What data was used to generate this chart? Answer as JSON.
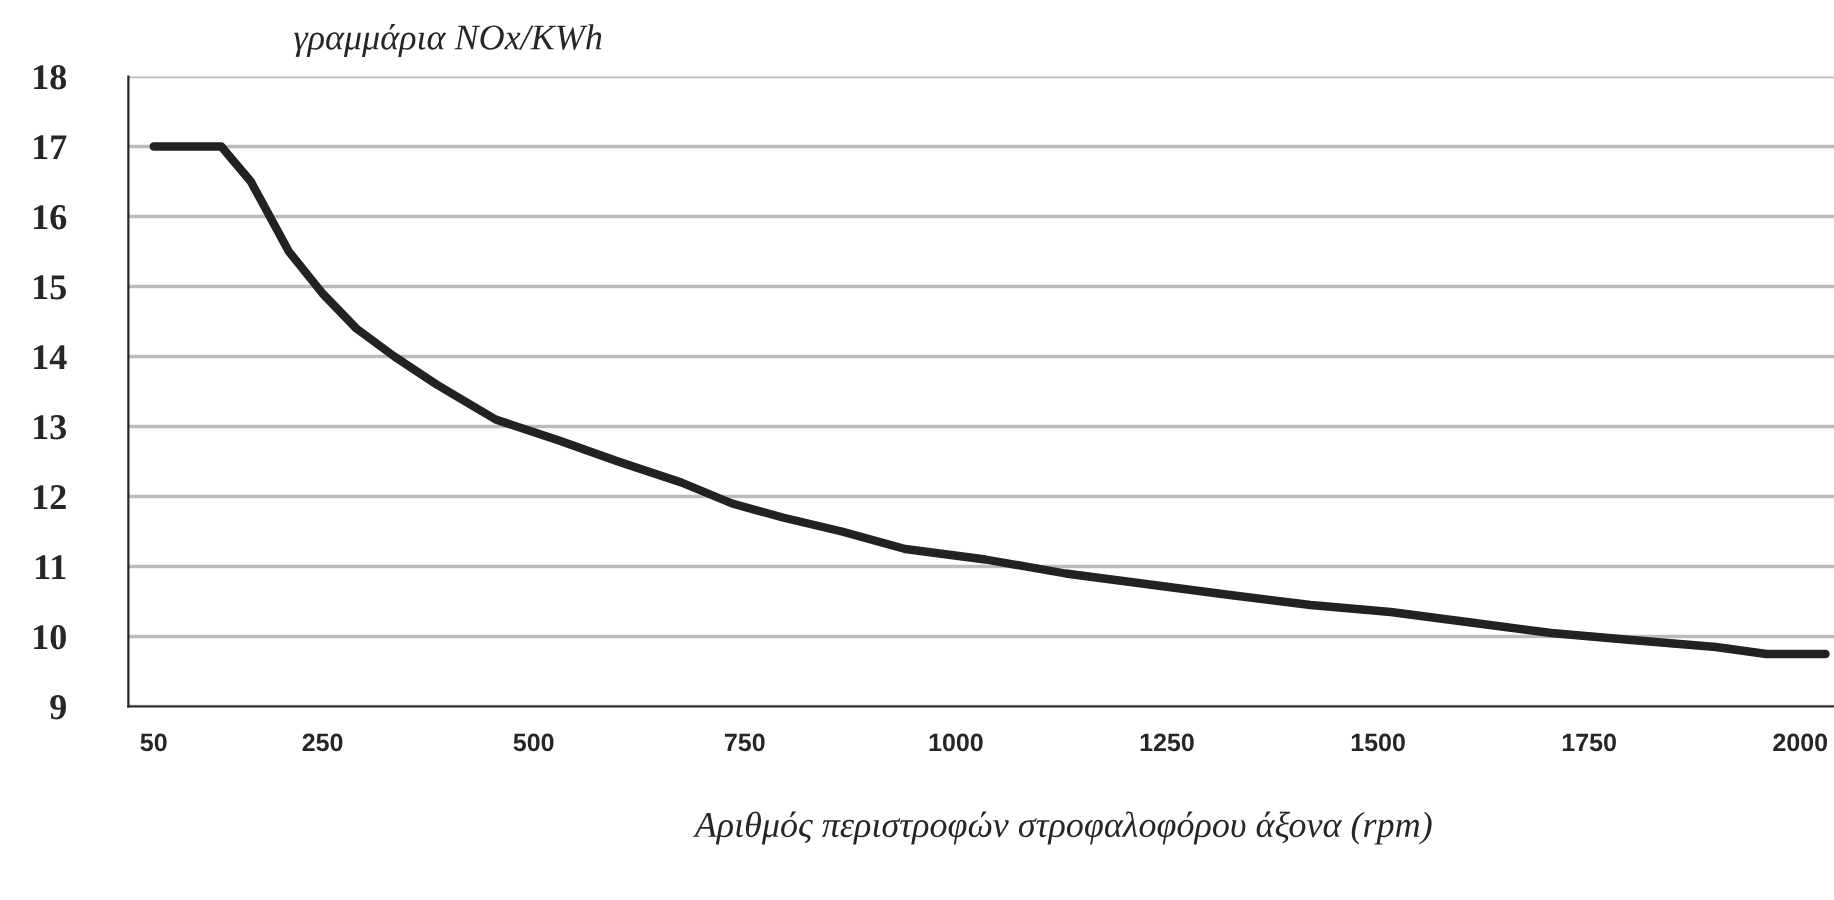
{
  "chart_data": {
    "type": "line",
    "ylabel": "γραμμάρια NOx/KWh",
    "xlabel": "Αριθμός περιστροφών στροφαλοφόρου άξονα (rpm)",
    "x": [
      50,
      130,
      165,
      210,
      250,
      290,
      335,
      385,
      455,
      530,
      600,
      675,
      735,
      795,
      865,
      940,
      1035,
      1130,
      1225,
      1320,
      1420,
      1515,
      1610,
      1705,
      1800,
      1900,
      1960,
      2030
    ],
    "series": [
      {
        "color": "#222222",
        "values": [
          17,
          17,
          16.5,
          15.5,
          14.9,
          14.4,
          14.0,
          13.6,
          13.1,
          12.8,
          12.5,
          12.2,
          11.9,
          11.7,
          11.5,
          11.25,
          11.1,
          10.9,
          10.75,
          10.6,
          10.45,
          10.35,
          10.2,
          10.05,
          9.95,
          9.85,
          9.75,
          9.75
        ]
      }
    ],
    "xlim": [
      20,
      2040
    ],
    "xticks": [
      50,
      250,
      500,
      750,
      1000,
      1250,
      1500,
      1750,
      2000
    ],
    "ylim": [
      9,
      18
    ],
    "yticks": [
      9,
      10,
      11,
      12,
      13,
      14,
      15,
      16,
      17,
      18
    ],
    "grid": "y",
    "legend": false,
    "marker": "none",
    "line_style": "solid"
  }
}
